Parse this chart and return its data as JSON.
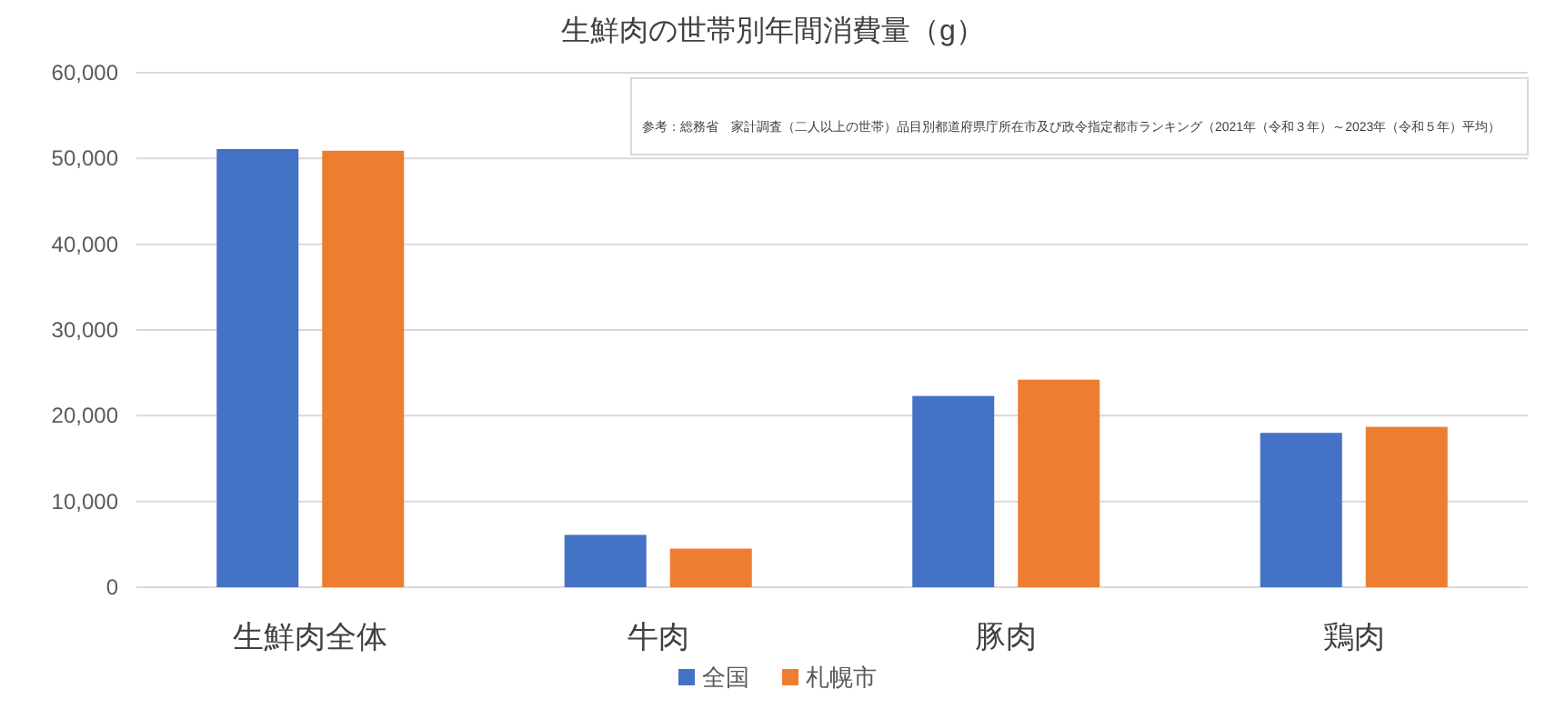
{
  "chart_data": {
    "type": "bar",
    "title": "生鮮肉の世帯別年間消費量（g）",
    "categories": [
      "生鮮肉全体",
      "牛肉",
      "豚肉",
      "鶏肉"
    ],
    "series": [
      {
        "name": "全国",
        "color": "#4472c4",
        "values": [
          51100,
          6100,
          22300,
          18000
        ]
      },
      {
        "name": "札幌市",
        "color": "#ed7d31",
        "values": [
          50900,
          4500,
          24200,
          18700
        ]
      }
    ],
    "ylim": [
      0,
      60000
    ],
    "yticks": [
      {
        "value": 0,
        "label": "0"
      },
      {
        "value": 10000,
        "label": "10,000"
      },
      {
        "value": 20000,
        "label": "20,000"
      },
      {
        "value": 30000,
        "label": "30,000"
      },
      {
        "value": 40000,
        "label": "40,000"
      },
      {
        "value": 50000,
        "label": "50,000"
      },
      {
        "value": 60000,
        "label": "60,000"
      }
    ],
    "grid": "y",
    "legend": "bottom",
    "annotations": [
      "参考：総務省　家計調査（二人以上の世帯）品目別都道府県庁所在市及び政令指定都市ランキング（2021年（令和３年）～2023年（令和５年）平均）"
    ]
  }
}
